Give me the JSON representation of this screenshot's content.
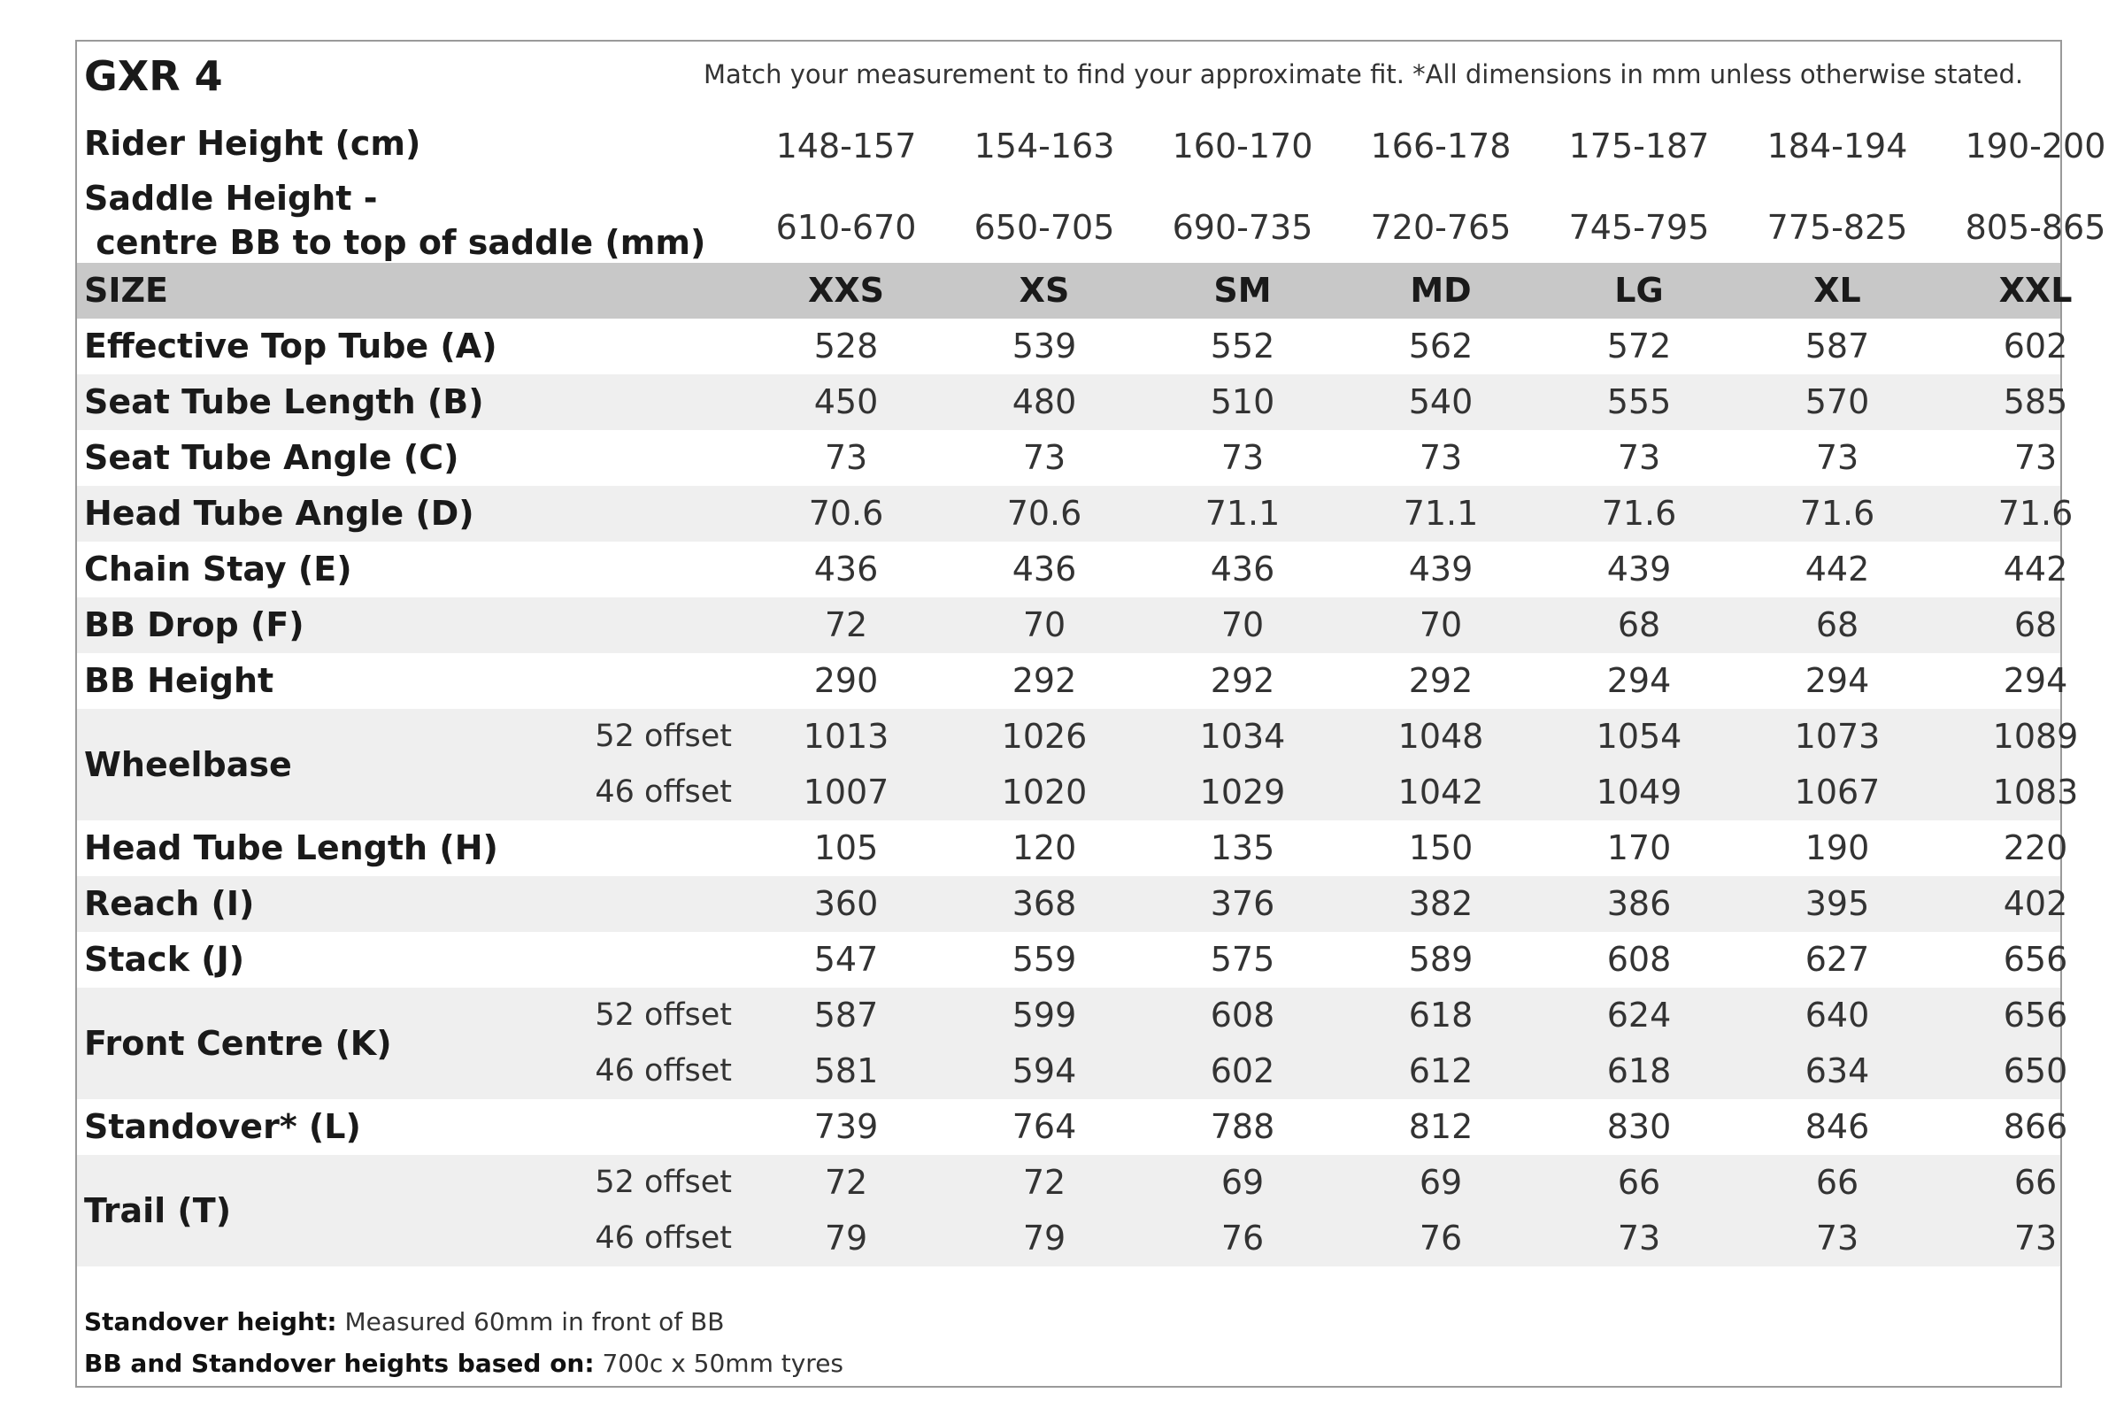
{
  "title": "GXR 4",
  "note": "Match your measurement to find your approximate fit. *All dimensions in mm unless otherwise stated.",
  "rider_height": {
    "label": "Rider Height (cm)",
    "values": [
      "148-157",
      "154-163",
      "160-170",
      "166-178",
      "175-187",
      "184-194",
      "190-200"
    ]
  },
  "saddle_height": {
    "label_line1": "Saddle Height -",
    "label_line2": " centre BB to top of saddle (mm)",
    "values": [
      "610-670",
      "650-705",
      "690-735",
      "720-765",
      "745-795",
      "775-825",
      "805-865"
    ]
  },
  "size_row": {
    "label": "SIZE",
    "values": [
      "XXS",
      "XS",
      "SM",
      "MD",
      "LG",
      "XL",
      "XXL"
    ]
  },
  "rows": [
    {
      "label": "Effective Top Tube (A)",
      "values": [
        "528",
        "539",
        "552",
        "562",
        "572",
        "587",
        "602"
      ]
    },
    {
      "label": "Seat Tube Length (B)",
      "values": [
        "450",
        "480",
        "510",
        "540",
        "555",
        "570",
        "585"
      ]
    },
    {
      "label": "Seat Tube Angle (C)",
      "values": [
        "73",
        "73",
        "73",
        "73",
        "73",
        "73",
        "73"
      ]
    },
    {
      "label": "Head Tube Angle (D)",
      "values": [
        "70.6",
        "70.6",
        "71.1",
        "71.1",
        "71.6",
        "71.6",
        "71.6"
      ]
    },
    {
      "label": "Chain Stay (E)",
      "values": [
        "436",
        "436",
        "436",
        "439",
        "439",
        "442",
        "442"
      ]
    },
    {
      "label": "BB Drop (F)",
      "values": [
        "72",
        "70",
        "70",
        "70",
        "68",
        "68",
        "68"
      ]
    },
    {
      "label": "BB Height",
      "values": [
        "290",
        "292",
        "292",
        "292",
        "294",
        "294",
        "294"
      ]
    },
    {
      "label": "Wheelbase",
      "sub": "52 offset",
      "values": [
        "1013",
        "1026",
        "1034",
        "1048",
        "1054",
        "1073",
        "1089"
      ]
    },
    {
      "label": "",
      "sub": "46 offset",
      "values": [
        "1007",
        "1020",
        "1029",
        "1042",
        "1049",
        "1067",
        "1083"
      ]
    },
    {
      "label": "Head Tube Length (H)",
      "values": [
        "105",
        "120",
        "135",
        "150",
        "170",
        "190",
        "220"
      ]
    },
    {
      "label": "Reach (I)",
      "values": [
        "360",
        "368",
        "376",
        "382",
        "386",
        "395",
        "402"
      ]
    },
    {
      "label": "Stack (J)",
      "values": [
        "547",
        "559",
        "575",
        "589",
        "608",
        "627",
        "656"
      ]
    },
    {
      "label": "Front Centre (K)",
      "sub": "52 offset",
      "values": [
        "587",
        "599",
        "608",
        "618",
        "624",
        "640",
        "656"
      ]
    },
    {
      "label": "",
      "sub": "46 offset",
      "values": [
        "581",
        "594",
        "602",
        "612",
        "618",
        "634",
        "650"
      ]
    },
    {
      "label": "Standover* (L)",
      "values": [
        "739",
        "764",
        "788",
        "812",
        "830",
        "846",
        "866"
      ]
    },
    {
      "label": "Trail (T)",
      "sub": "52 offset",
      "values": [
        "72",
        "72",
        "69",
        "69",
        "66",
        "66",
        "66"
      ]
    },
    {
      "label": "",
      "sub": "46 offset",
      "values": [
        "79",
        "79",
        "76",
        "76",
        "73",
        "73",
        "73"
      ]
    }
  ],
  "footnotes": [
    {
      "bold": "Standover height:",
      "text": " Measured 60mm in front of BB"
    },
    {
      "bold": "BB and Standover heights based on:",
      "text": " 700c x 50mm tyres"
    }
  ]
}
